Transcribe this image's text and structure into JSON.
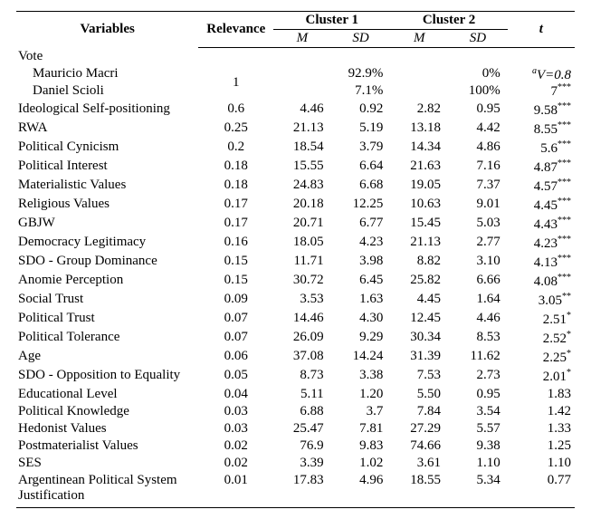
{
  "headers": {
    "variables": "Variables",
    "relevance": "Relevance",
    "cluster1": "Cluster 1",
    "cluster2": "Cluster 2",
    "m": "M",
    "sd": "SD",
    "t": "t"
  },
  "vote": {
    "label": "Vote",
    "cand1": "Mauricio Macri",
    "cand2": "Daniel Scioli",
    "relevance": "1",
    "cand1_c1": "92.9%",
    "cand1_c2": "0%",
    "cand2_c1": "7.1%",
    "cand2_c2": "100%",
    "t_prefix": "a",
    "t_line1": "V=0.8",
    "t_line2": "7",
    "t_stars": "***"
  },
  "rows": [
    {
      "var": "Ideological Self-positioning",
      "rel": "0.6",
      "c1m": "4.46",
      "c1sd": "0.92",
      "c2m": "2.82",
      "c2sd": "0.95",
      "t": "9.58",
      "stars": "***"
    },
    {
      "var": "RWA",
      "rel": "0.25",
      "c1m": "21.13",
      "c1sd": "5.19",
      "c2m": "13.18",
      "c2sd": "4.42",
      "t": "8.55",
      "stars": "***"
    },
    {
      "var": "Political Cynicism",
      "rel": "0.2",
      "c1m": "18.54",
      "c1sd": "3.79",
      "c2m": "14.34",
      "c2sd": "4.86",
      "t": "5.6",
      "stars": "***"
    },
    {
      "var": "Political Interest",
      "rel": "0.18",
      "c1m": "15.55",
      "c1sd": "6.64",
      "c2m": "21.63",
      "c2sd": "7.16",
      "t": "4.87",
      "stars": "***"
    },
    {
      "var": "Materialistic Values",
      "rel": "0.18",
      "c1m": "24.83",
      "c1sd": "6.68",
      "c2m": "19.05",
      "c2sd": "7.37",
      "t": "4.57",
      "stars": "***"
    },
    {
      "var": "Religious Values",
      "rel": "0.17",
      "c1m": "20.18",
      "c1sd": "12.25",
      "c2m": "10.63",
      "c2sd": "9.01",
      "t": "4.45",
      "stars": "***"
    },
    {
      "var": "GBJW",
      "rel": "0.17",
      "c1m": "20.71",
      "c1sd": "6.77",
      "c2m": "15.45",
      "c2sd": "5.03",
      "t": "4.43",
      "stars": "***"
    },
    {
      "var": "Democracy Legitimacy",
      "rel": "0.16",
      "c1m": "18.05",
      "c1sd": "4.23",
      "c2m": "21.13",
      "c2sd": "2.77",
      "t": "4.23",
      "stars": "***"
    },
    {
      "var": "SDO - Group Dominance",
      "rel": "0.15",
      "c1m": "11.71",
      "c1sd": "3.98",
      "c2m": "8.82",
      "c2sd": "3.10",
      "t": "4.13",
      "stars": "***"
    },
    {
      "var": "Anomie Perception",
      "rel": "0.15",
      "c1m": "30.72",
      "c1sd": "6.45",
      "c2m": "25.82",
      "c2sd": "6.66",
      "t": "4.08",
      "stars": "***"
    },
    {
      "var": "Social Trust",
      "rel": "0.09",
      "c1m": "3.53",
      "c1sd": "1.63",
      "c2m": "4.45",
      "c2sd": "1.64",
      "t": "3.05",
      "stars": "**"
    },
    {
      "var": "Political Trust",
      "rel": "0.07",
      "c1m": "14.46",
      "c1sd": "4.30",
      "c2m": "12.45",
      "c2sd": "4.46",
      "t": "2.51",
      "stars": "*"
    },
    {
      "var": "Political Tolerance",
      "rel": "0.07",
      "c1m": "26.09",
      "c1sd": "9.29",
      "c2m": "30.34",
      "c2sd": "8.53",
      "t": "2.52",
      "stars": "*"
    },
    {
      "var": "Age",
      "rel": "0.06",
      "c1m": "37.08",
      "c1sd": "14.24",
      "c2m": "31.39",
      "c2sd": "11.62",
      "t": "2.25",
      "stars": "*"
    },
    {
      "var": "SDO - Opposition to Equality",
      "rel": "0.05",
      "c1m": "8.73",
      "c1sd": "3.38",
      "c2m": "7.53",
      "c2sd": "2.73",
      "t": "2.01",
      "stars": "*"
    },
    {
      "var": "Educational Level",
      "rel": "0.04",
      "c1m": "5.11",
      "c1sd": "1.20",
      "c2m": "5.50",
      "c2sd": "0.95",
      "t": "1.83",
      "stars": ""
    },
    {
      "var": "Political Knowledge",
      "rel": "0.03",
      "c1m": "6.88",
      "c1sd": "3.7",
      "c2m": "7.84",
      "c2sd": "3.54",
      "t": "1.42",
      "stars": ""
    },
    {
      "var": "Hedonist Values",
      "rel": "0.03",
      "c1m": "25.47",
      "c1sd": "7.81",
      "c2m": "27.29",
      "c2sd": "5.57",
      "t": "1.33",
      "stars": ""
    },
    {
      "var": "Postmaterialist Values",
      "rel": "0.02",
      "c1m": "76.9",
      "c1sd": "9.83",
      "c2m": "74.66",
      "c2sd": "9.38",
      "t": "1.25",
      "stars": ""
    },
    {
      "var": "SES",
      "rel": "0.02",
      "c1m": "3.39",
      "c1sd": "1.02",
      "c2m": "3.61",
      "c2sd": "1.10",
      "t": "1.10",
      "stars": ""
    },
    {
      "var": "Argentinean Political System Justification",
      "rel": "0.01",
      "c1m": "17.83",
      "c1sd": "4.96",
      "c2m": "18.55",
      "c2sd": "5.34",
      "t": "0.77",
      "stars": ""
    }
  ]
}
